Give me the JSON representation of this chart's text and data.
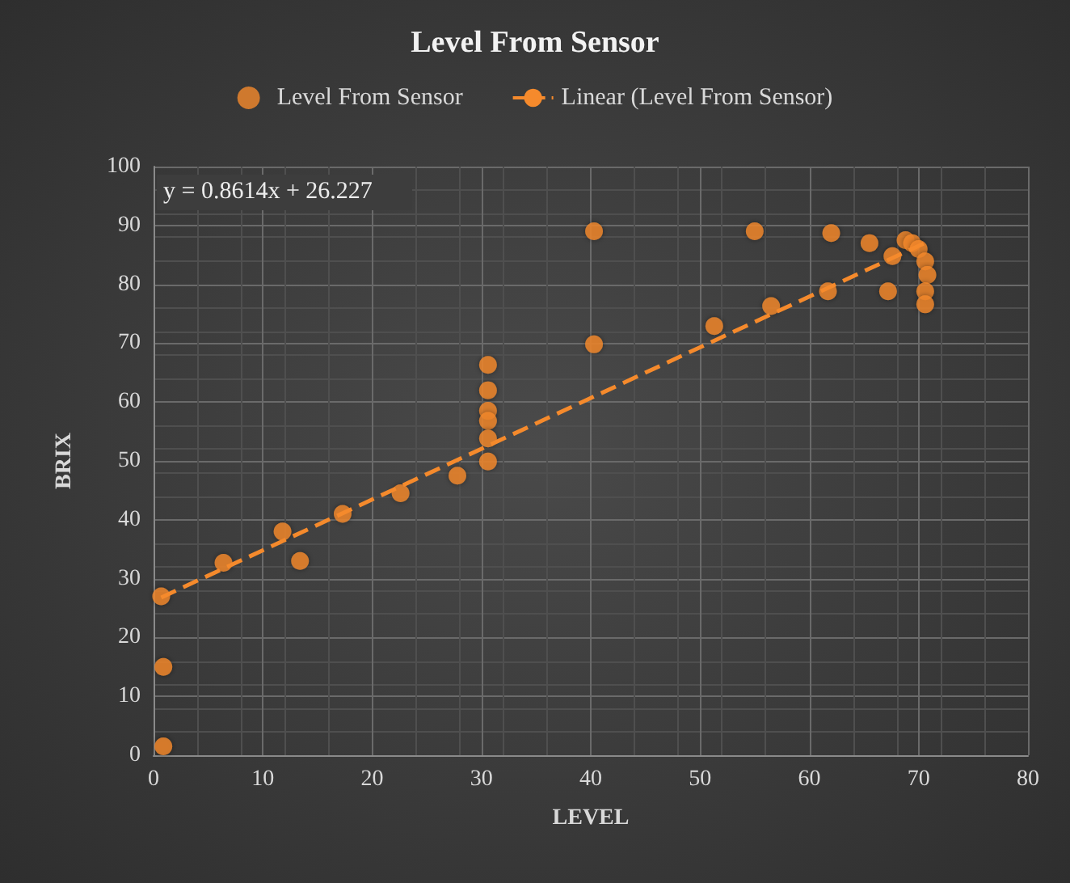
{
  "chart_data": {
    "type": "scatter",
    "title": "Level From Sensor",
    "xlabel": "LEVEL",
    "ylabel": "BRIX",
    "annotations": [
      "y = 0.8614x + 26.227"
    ],
    "xlim": [
      0,
      80
    ],
    "xticks": [
      0,
      10,
      20,
      30,
      40,
      50,
      60,
      70,
      80
    ],
    "ylim": [
      0,
      100
    ],
    "yticks": [
      0,
      10,
      20,
      30,
      40,
      50,
      60,
      70,
      80,
      90,
      100
    ],
    "grid": true,
    "legend": "top",
    "marker": "circle",
    "series": [
      {
        "name": "Level From Sensor",
        "color": "#f58a2c",
        "x": [
          0.7,
          0.9,
          0.9,
          6.4,
          11.8,
          13.4,
          17.3,
          22.6,
          27.8,
          30.6,
          30.6,
          30.6,
          30.6,
          30.6,
          30.6,
          40.3,
          40.3,
          55,
          62,
          65.5,
          51.3,
          56.5,
          61.7,
          67.2,
          67.6,
          68.8,
          69.4,
          70,
          70.6,
          70.8,
          70.6,
          70.6
        ],
        "values": [
          27,
          15,
          1.5,
          32.7,
          38,
          33,
          41,
          44.5,
          47.5,
          66.3,
          62,
          58.5,
          56.8,
          53.8,
          49.9,
          89,
          69.8,
          89,
          88.7,
          87,
          72.9,
          76.3,
          78.8,
          78.8,
          84.8,
          87.5,
          87,
          86,
          83.9,
          81.6,
          78.8,
          76.6
        ]
      },
      {
        "name": "Linear (Level From Sensor)",
        "type": "line",
        "color": "#f58a2c",
        "line_style": "dashed",
        "marker": "none",
        "x": [
          0.7,
          71
        ],
        "values": [
          26.8,
          87.4
        ]
      }
    ]
  }
}
